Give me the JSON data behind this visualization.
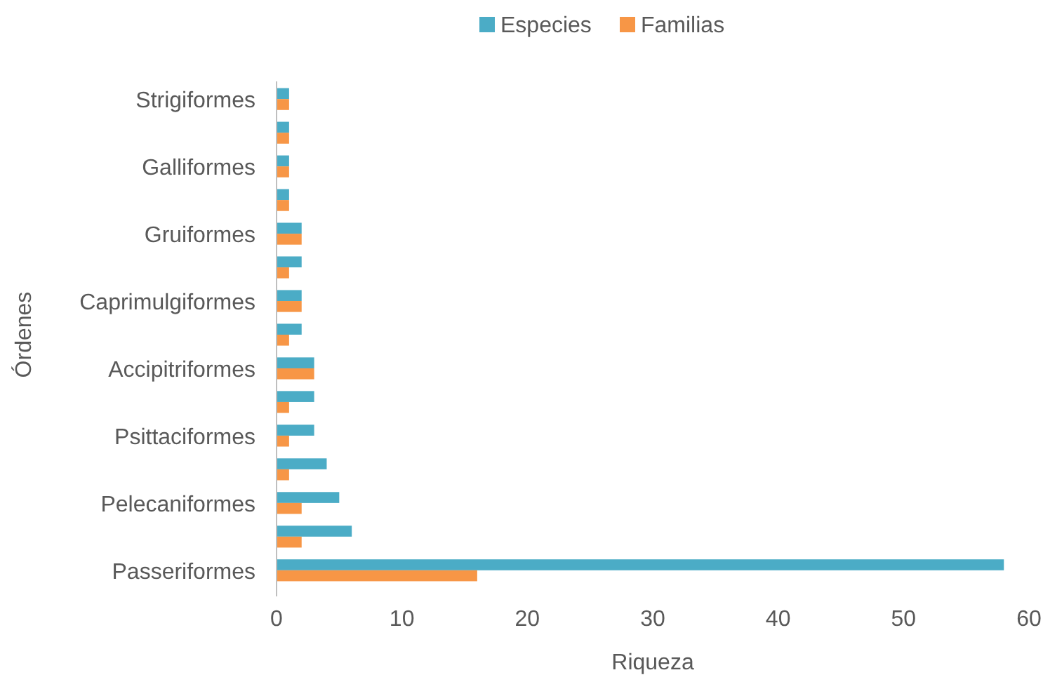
{
  "chart_data": {
    "type": "bar",
    "orientation": "horizontal",
    "xlabel": "Riqueza",
    "ylabel": "Órdenes",
    "categories": [
      "Strigiformes",
      null,
      "Galliformes",
      null,
      "Gruiformes",
      null,
      "Caprimulgiformes",
      null,
      "Accipitriformes",
      null,
      "Psittaciformes",
      null,
      "Pelecaniformes",
      null,
      "Passeriformes"
    ],
    "series": [
      {
        "name": "Especies",
        "color": "#4bacc6",
        "values": [
          1,
          1,
          1,
          1,
          2,
          2,
          2,
          2,
          3,
          3,
          3,
          4,
          5,
          6,
          58
        ]
      },
      {
        "name": "Familias",
        "color": "#f79646",
        "values": [
          1,
          1,
          1,
          1,
          2,
          1,
          2,
          1,
          3,
          1,
          1,
          1,
          2,
          2,
          16
        ]
      }
    ],
    "xlim": [
      0,
      60
    ],
    "xticks": [
      0,
      10,
      20,
      30,
      40,
      50,
      60
    ],
    "grid": false,
    "legend": "top"
  }
}
